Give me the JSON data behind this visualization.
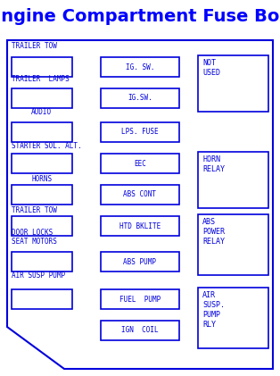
{
  "title": "Engine Compartment Fuse Box",
  "title_color": "#0000ff",
  "bg_color": "#ffffff",
  "box_color": "#0000dd",
  "text_color": "#0000dd",
  "fig_w": 3.14,
  "fig_h": 4.21,
  "dpi": 100,
  "left_labels": [
    {
      "text": "TRAILER TOW",
      "row": 0
    },
    {
      "text": "TRAILER  LAMPS",
      "row": 1
    },
    {
      "text": "AUDIO",
      "row": 2,
      "indent": true
    },
    {
      "text": "STARTER SOL. ALT.",
      "row": 3,
      "noindent": true
    },
    {
      "text": "HORNS",
      "row": 4,
      "indent": true
    },
    {
      "text": "TRAILER TOW",
      "row": 5
    },
    {
      "text": "DOOR LOCKS\nSEAT MOTORS",
      "row": 6
    },
    {
      "text": "AIR SUSP PUMP",
      "row": 7
    }
  ],
  "mid_labels": [
    "IG. SW.",
    "IG.SW.",
    "LPS. FUSE",
    "EEC",
    "ABS CONT",
    "HTD BKLITE",
    "ABS PUMP",
    "FUEL  PUMP",
    "IGN  COIL"
  ],
  "right_labels": [
    [
      "NOT",
      "USED"
    ],
    [
      "HORN",
      "RELAY"
    ],
    [
      "ABS",
      "POWER",
      "RELAY"
    ],
    [
      "AIR",
      "SUSP.",
      "PUMP",
      "RLY"
    ]
  ]
}
